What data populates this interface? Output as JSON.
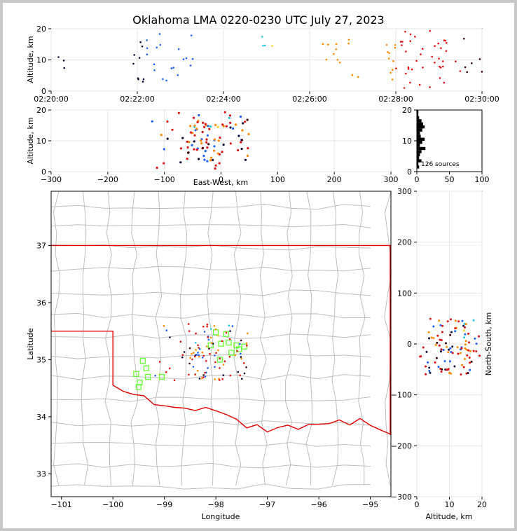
{
  "chart_data": {
    "type": "scatter",
    "title": "Oklahoma LMA 0220-0230 UTC July 27, 2023",
    "source_count_label": "126 sources",
    "colors": {
      "early": "#1f5fff",
      "mid": "#22c7e0",
      "midlate": "#ffd21f",
      "late": "#ff8a00",
      "last": "#e01010",
      "end": "#3a0000",
      "county": "#bdbdbd",
      "state": "#e00000",
      "station": "#66ff33",
      "grid": "#e6e6e6"
    },
    "panels": {
      "time_altitude": {
        "ylabel": "Altitude, km",
        "ylim": [
          0,
          20
        ],
        "yticks": [
          "0",
          "10",
          "20"
        ],
        "xlim": [
          "02:20:00",
          "02:30:00"
        ],
        "xticks": [
          "02:20:00",
          "02:22:00",
          "02:24:00",
          "02:26:00",
          "02:28:00",
          "02:30:00"
        ]
      },
      "ew_altitude": {
        "xlabel": "East-West, km",
        "ylabel": "Altitude, km",
        "xlim": [
          -300,
          300
        ],
        "ylim": [
          0,
          20
        ],
        "xticks": [
          "−300",
          "−200",
          "−100",
          "0",
          "100",
          "200",
          "300"
        ],
        "yticks": [
          "0",
          "10",
          "20"
        ]
      },
      "histogram": {
        "xlim": [
          0,
          100
        ],
        "ylim": [
          0,
          20
        ],
        "xticks": [
          "0",
          "50",
          "100"
        ],
        "yticks": [
          "0",
          "10",
          "20"
        ]
      },
      "plan_view": {
        "xlabel": "Longitude",
        "ylabel": "Latitude",
        "xlim": [
          -101.2,
          -94.6
        ],
        "ylim": [
          32.6,
          37.95
        ],
        "xticks": [
          "−101",
          "−100",
          "−99",
          "−98",
          "−97",
          "−96",
          "−95"
        ],
        "yticks": [
          "33",
          "34",
          "35",
          "36",
          "37"
        ]
      },
      "ns_altitude": {
        "xlabel": "Altitude, km",
        "ylabel": "North-South, km",
        "xlim": [
          0,
          20
        ],
        "ylim": [
          -300,
          300
        ],
        "xticks": [
          "0",
          "10",
          "20"
        ],
        "yticks": [
          "−300",
          "−200",
          "−100",
          "0",
          "100",
          "200",
          "300"
        ]
      }
    }
  }
}
